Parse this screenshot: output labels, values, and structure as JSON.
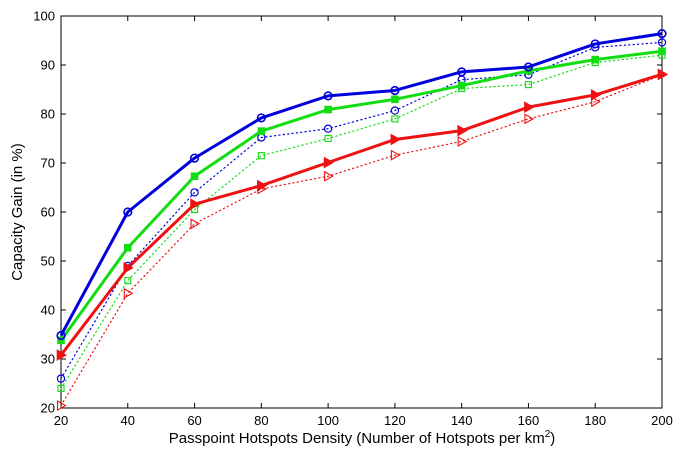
{
  "chart_data": {
    "type": "line",
    "xlabel": "Passpoint Hotspots Density (Number of Hotspots per km",
    "xlabel_superscript": "2",
    "xlabel_suffix": ")",
    "ylabel": "Capacity Gain (in %)",
    "xlim": [
      20,
      200
    ],
    "ylim": [
      20,
      100
    ],
    "x_ticks": [
      20,
      40,
      60,
      80,
      100,
      120,
      140,
      160,
      180,
      200
    ],
    "y_ticks": [
      20,
      30,
      40,
      50,
      60,
      70,
      80,
      90,
      100
    ],
    "grid": false,
    "legend": "none",
    "x": [
      20,
      40,
      60,
      80,
      100,
      120,
      140,
      160,
      180,
      200
    ],
    "series": [
      {
        "color": "#0000dd",
        "line": "solid",
        "marker": "circle-dot",
        "values": [
          34.8,
          60,
          71,
          79.2,
          83.7,
          84.8,
          88.6,
          89.6,
          94.3,
          96.4
        ]
      },
      {
        "color": "#11dd11",
        "line": "solid",
        "marker": "square-filled",
        "values": [
          33.8,
          52.7,
          67.3,
          76.5,
          80.9,
          83,
          85.8,
          88.8,
          91.1,
          92.8
        ]
      },
      {
        "color": "#ee1111",
        "line": "solid",
        "marker": "triangle-right-filled",
        "values": [
          30.8,
          48.6,
          61.6,
          65.4,
          70.1,
          74.8,
          76.6,
          81.4,
          83.9,
          88.1
        ]
      },
      {
        "color": "#0000dd",
        "line": "dotted",
        "marker": "circle-open",
        "values": [
          26,
          49,
          64,
          75.2,
          77,
          80.7,
          87,
          88,
          93.6,
          94.6
        ]
      },
      {
        "color": "#11dd11",
        "line": "dotted",
        "marker": "square-open",
        "values": [
          24,
          46,
          60.5,
          71.5,
          75,
          79,
          85.2,
          86,
          90.5,
          92
        ]
      },
      {
        "color": "#ee1111",
        "line": "dotted",
        "marker": "triangle-right-open",
        "values": [
          20.5,
          43.4,
          57.6,
          64.7,
          67.3,
          71.6,
          74.4,
          79,
          82.5,
          88
        ]
      }
    ]
  }
}
